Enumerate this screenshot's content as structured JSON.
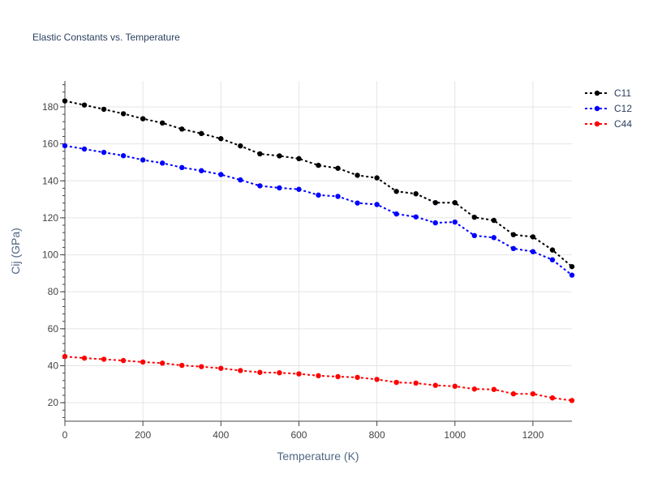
{
  "chart_data": {
    "type": "line",
    "title": "Elastic Constants vs. Temperature",
    "xlabel": "Temperature (K)",
    "ylabel": "Cij (GPa)",
    "xlim": [
      0,
      1300
    ],
    "ylim": [
      10,
      194
    ],
    "xticks": [
      0,
      200,
      400,
      600,
      800,
      1000,
      1200
    ],
    "yticks": [
      20,
      40,
      60,
      80,
      100,
      120,
      140,
      160,
      180
    ],
    "grid": true,
    "legend_position": "top-right",
    "x": [
      0,
      50,
      100,
      150,
      200,
      250,
      300,
      350,
      400,
      450,
      500,
      550,
      600,
      650,
      700,
      750,
      800,
      850,
      900,
      950,
      1000,
      1050,
      1100,
      1150,
      1200,
      1250,
      1300
    ],
    "series": [
      {
        "name": "C11",
        "color": "#000000",
        "values": [
          183.2,
          181,
          178.7,
          176.3,
          173.6,
          171.3,
          168,
          165.6,
          162.8,
          158.9,
          154.6,
          153.5,
          152,
          148.4,
          146.8,
          143,
          141.6,
          134.3,
          133,
          128.2,
          128.2,
          120.3,
          118.6,
          110.9,
          109.7,
          102.6,
          93.6
        ]
      },
      {
        "name": "C12",
        "color": "#0000ff",
        "values": [
          159,
          157.2,
          155.4,
          153.6,
          151.3,
          149.6,
          147.2,
          145.5,
          143.4,
          140.5,
          137.3,
          136.2,
          135.4,
          132.3,
          131.6,
          128,
          127.2,
          122.1,
          120.5,
          117.3,
          117.7,
          110.4,
          109.3,
          103.4,
          101.7,
          97.3,
          89
        ]
      },
      {
        "name": "C44",
        "color": "#ff0000",
        "values": [
          45,
          44.1,
          43.5,
          42.8,
          42,
          41.4,
          40.2,
          39.5,
          38.6,
          37.4,
          36.4,
          36.2,
          35.6,
          34.6,
          34.1,
          33.7,
          32.6,
          31,
          30.6,
          29.4,
          28.9,
          27.4,
          27.2,
          24.8,
          24.8,
          22.6,
          21.2
        ]
      }
    ]
  }
}
